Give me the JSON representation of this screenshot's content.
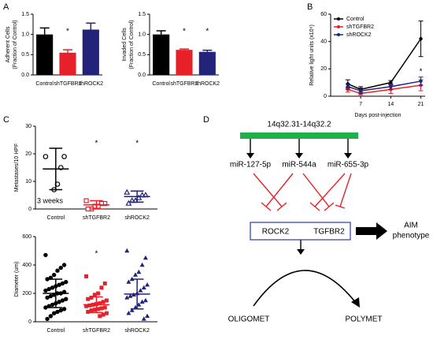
{
  "panel_labels": [
    "A",
    "B",
    "C",
    "D"
  ],
  "chart_data": [
    {
      "type": "bar",
      "ylabel": [
        "Adherent Cells",
        "(Fraction of Control)"
      ],
      "categories": [
        "Control",
        "shTGFBR2",
        "shROCK2"
      ],
      "values": [
        1.0,
        0.55,
        1.12
      ],
      "errors": [
        0.16,
        0.07,
        0.16
      ],
      "colors": [
        "#000000",
        "#e8202a",
        "#23237a"
      ],
      "significance": [
        null,
        "*",
        null
      ],
      "ylim": [
        0,
        1.5
      ],
      "yticks": [
        {
          "value": 0,
          "label": "0.0"
        },
        {
          "value": 0.5,
          "label": "0.5"
        },
        {
          "value": 1,
          "label": "1.0"
        },
        {
          "value": 1.5,
          "label": "1.5"
        }
      ]
    },
    {
      "type": "bar",
      "ylabel": [
        "Invaded Cells",
        "(Fraction of Control)"
      ],
      "categories": [
        "Control",
        "shTGFBR2",
        "shROCK2"
      ],
      "values": [
        1.0,
        0.62,
        0.57
      ],
      "errors": [
        0.09,
        0.02,
        0.04
      ],
      "colors": [
        "#000000",
        "#e8202a",
        "#23237a"
      ],
      "significance": [
        null,
        "*",
        "*"
      ],
      "ylim": [
        0,
        1.5
      ],
      "yticks": [
        {
          "value": 0,
          "label": "0.0"
        },
        {
          "value": 0.5,
          "label": "0.5"
        },
        {
          "value": 1,
          "label": "1.0"
        },
        {
          "value": 1.5,
          "label": "1.5"
        }
      ]
    },
    {
      "type": "line",
      "ylabel": [
        "Relative light units (x10⁶)"
      ],
      "xlabel": "Days post-injection",
      "x": [
        4,
        7,
        14,
        21
      ],
      "xlim": [
        0,
        22
      ],
      "xticks": [
        7,
        14,
        21
      ],
      "ylim": [
        0,
        60
      ],
      "yticks": [
        0,
        20,
        40,
        60
      ],
      "legend": "upper left",
      "series": [
        {
          "name": "Control",
          "color": "#000000",
          "values": [
            9,
            5,
            10,
            42
          ],
          "errors": [
            3,
            2,
            1.5,
            13
          ]
        },
        {
          "name": "shTGFBR2",
          "color": "#e8202a",
          "values": [
            5,
            2,
            5,
            8
          ],
          "errors": [
            2,
            1,
            3,
            4
          ]
        },
        {
          "name": "shROCK2",
          "color": "#23237a",
          "values": [
            7,
            4,
            7,
            11
          ],
          "errors": [
            2,
            2,
            2,
            3
          ]
        }
      ],
      "annotations": [
        {
          "text": "*",
          "x": 21,
          "y": 18
        }
      ]
    },
    {
      "type": "strip",
      "ylabel": [
        "Metastases/10 HPF"
      ],
      "annotation": "3 weeks",
      "open_markers": true,
      "categories": [
        "Control",
        "shTGFBR2",
        "shROCK2"
      ],
      "colors": [
        "#000000",
        "#e8202a",
        "#23237a"
      ],
      "markers": [
        "circle",
        "square",
        "triangle"
      ],
      "significance": [
        null,
        "*",
        "*"
      ],
      "points": [
        [
          19,
          19,
          15,
          9,
          7
        ],
        [
          3,
          2,
          2,
          1,
          1,
          0,
          0
        ],
        [
          6,
          5,
          5,
          4,
          3,
          3,
          2
        ]
      ],
      "mean": [
        14.5,
        1.5,
        4.5
      ],
      "sd": [
        7.5,
        1.5,
        2
      ],
      "ylim": [
        0,
        30
      ],
      "yticks": [
        0,
        10,
        20,
        30
      ]
    },
    {
      "type": "strip",
      "ylabel": [
        "Diameter (um)"
      ],
      "open_markers": false,
      "categories": [
        "Control",
        "shTGFBR2",
        "shROCK2"
      ],
      "colors": [
        "#000000",
        "#e8202a",
        "#23237a"
      ],
      "markers": [
        "circle",
        "square",
        "triangle"
      ],
      "significance": [
        null,
        "*",
        null
      ],
      "points": [
        [
          470,
          400,
          380,
          360,
          330,
          310,
          300,
          280,
          270,
          260,
          250,
          240,
          230,
          220,
          210,
          200,
          200,
          190,
          180,
          170,
          160,
          150,
          140,
          130,
          120,
          110,
          100,
          90,
          80,
          70,
          60,
          40,
          20
        ],
        [
          320,
          270,
          240,
          200,
          190,
          170,
          160,
          150,
          140,
          130,
          125,
          120,
          115,
          110,
          100,
          95,
          90,
          85,
          80,
          70,
          60,
          50,
          40
        ],
        [
          500,
          450,
          400,
          350,
          330,
          300,
          280,
          260,
          240,
          220,
          200,
          190,
          180,
          170,
          150,
          140,
          120,
          100,
          80,
          60,
          40,
          20
        ]
      ],
      "mean": [
        200,
        120,
        195
      ],
      "sd": [
        100,
        55,
        105
      ],
      "ylim": [
        0,
        600
      ],
      "yticks": [
        0,
        200,
        400,
        600
      ]
    }
  ],
  "diagram": {
    "locus": "14q32.31-14q32.2",
    "mirnas": [
      "miR-127-5p",
      "miR-544a",
      "miR-655-3p"
    ],
    "targets": [
      "ROCK2",
      "TGFBR2"
    ],
    "outcome": [
      "AIM",
      "phenotype"
    ],
    "states": [
      "OLIGOMET",
      "POLYMET"
    ]
  }
}
